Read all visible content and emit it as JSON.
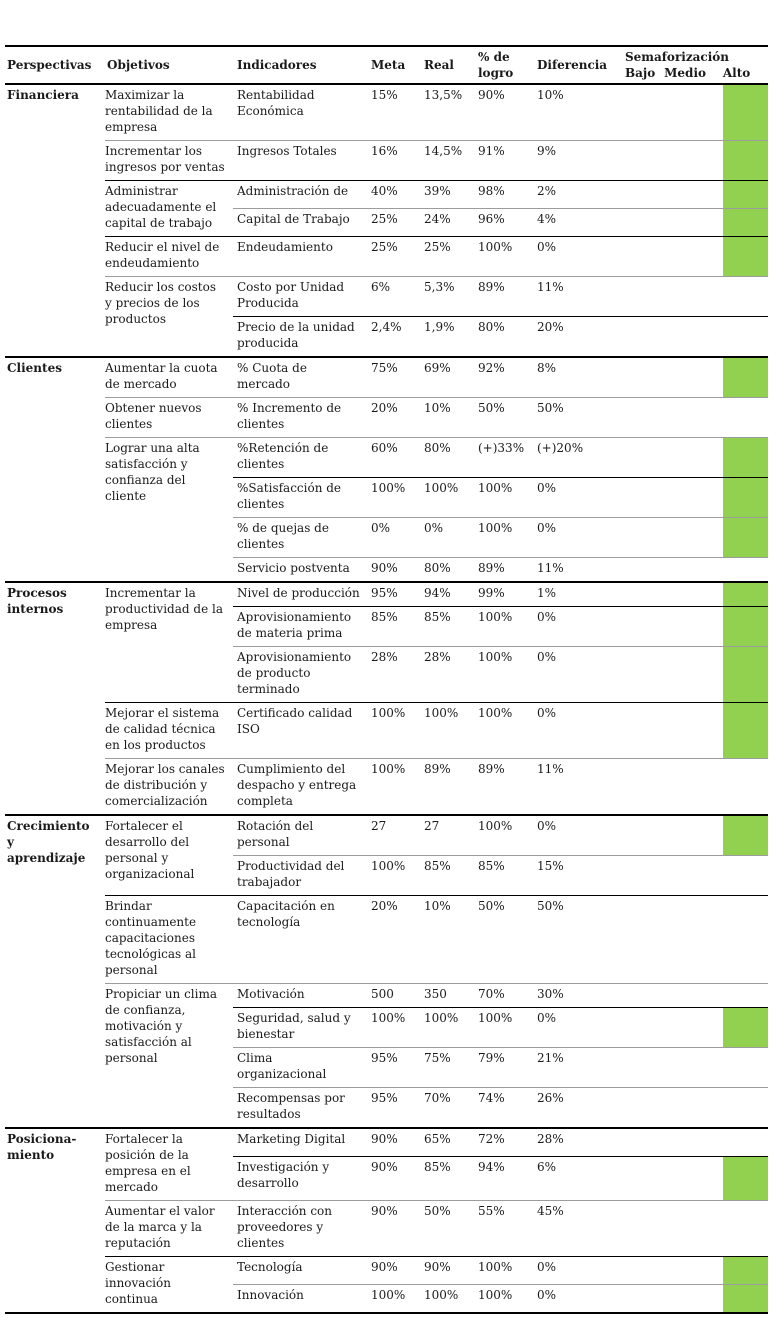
{
  "table": {
    "columns": {
      "perspectivas": "Perspectivas",
      "objetivos": "Objetivos",
      "indicadores": "Indicadores",
      "meta": "Meta",
      "real": "Real",
      "logro": "% de logro",
      "diferencia": "Diferencia",
      "semaforizacion": "Semaforización",
      "niveles": [
        "Bajo",
        "Medio",
        "Alto"
      ]
    },
    "colors": {
      "semaforo_alto_green": "#92D050",
      "divider_gray": "#9c9c9c",
      "divider_black": "#000000"
    },
    "perspectives": [
      {
        "name": "Financiera",
        "objectives": [
          {
            "label": "Maximizar la rentabilidad de la empresa",
            "divider": null,
            "indicators": [
              {
                "label": "Rentabilidad Económica",
                "meta": "15%",
                "real": "13,5%",
                "logro": "90%",
                "diferencia": "10%",
                "alto": true,
                "divider": null
              }
            ]
          },
          {
            "label": "Incrementar los ingresos por ventas",
            "divider": "gray",
            "indicators": [
              {
                "label": "Ingresos Totales",
                "meta": "16%",
                "real": "14,5%",
                "logro": "91%",
                "diferencia": "9%",
                "alto": true,
                "divider": null
              }
            ]
          },
          {
            "label": "Administrar adecuadamente el capital de trabajo",
            "divider": "black",
            "indicators": [
              {
                "label": "Administración de",
                "meta": "40%",
                "real": "39%",
                "logro": "98%",
                "diferencia": "2%",
                "alto": true,
                "divider": null
              },
              {
                "label": "Capital de Trabajo",
                "meta": "25%",
                "real": "24%",
                "logro": "96%",
                "diferencia": "4%",
                "alto": true,
                "divider": "gray"
              }
            ]
          },
          {
            "label": "Reducir el nivel de endeudamiento",
            "divider": "black",
            "indicators": [
              {
                "label": "Endeudamiento",
                "meta": "25%",
                "real": "25%",
                "logro": "100%",
                "diferencia": "0%",
                "alto": true,
                "divider": null
              }
            ]
          },
          {
            "label": "Reducir los costos y precios de los productos",
            "divider": "gray",
            "indicators": [
              {
                "label": "Costo por Unidad Producida",
                "meta": "6%",
                "real": "5,3%",
                "logro": "89%",
                "diferencia": "11%",
                "alto": false,
                "divider": null
              },
              {
                "label": "Precio de la unidad producida",
                "meta": "2,4%",
                "real": "1,9%",
                "logro": "80%",
                "diferencia": "20%",
                "alto": false,
                "divider": "black"
              }
            ]
          }
        ]
      },
      {
        "name": "Clientes",
        "objectives": [
          {
            "label": "Aumentar la cuota de mercado",
            "divider": null,
            "indicators": [
              {
                "label": "% Cuota de mercado",
                "meta": "75%",
                "real": "69%",
                "logro": "92%",
                "diferencia": "8%",
                "alto": true,
                "divider": null
              }
            ]
          },
          {
            "label": "Obtener nuevos clientes",
            "divider": "gray",
            "indicators": [
              {
                "label": "% Incremento de clientes",
                "meta": "20%",
                "real": "10%",
                "logro": "50%",
                "diferencia": "50%",
                "alto": false,
                "divider": null
              }
            ]
          },
          {
            "label": "Lograr una alta satisfacción y confianza del cliente",
            "divider": "gray",
            "indicators": [
              {
                "label": "%Retención de clientes",
                "meta": "60%",
                "real": "80%",
                "logro": "(+)33%",
                "diferencia": "(+)20%",
                "alto": true,
                "divider": null
              },
              {
                "label": "%Satisfacción de clientes",
                "meta": "100%",
                "real": "100%",
                "logro": "100%",
                "diferencia": "0%",
                "alto": true,
                "divider": "black"
              },
              {
                "label": "% de quejas de clientes",
                "meta": "0%",
                "real": "0%",
                "logro": "100%",
                "diferencia": "0%",
                "alto": true,
                "divider": "gray"
              },
              {
                "label": "Servicio postventa",
                "meta": "90%",
                "real": "80%",
                "logro": "89%",
                "diferencia": "11%",
                "alto": false,
                "divider": "gray"
              }
            ]
          }
        ]
      },
      {
        "name": "Procesos\ninternos",
        "objectives": [
          {
            "label": "Incrementar la productividad de la empresa",
            "divider": null,
            "indicators": [
              {
                "label": "Nivel de producción",
                "meta": "95%",
                "real": "94%",
                "logro": "99%",
                "diferencia": "1%",
                "alto": true,
                "divider": null
              },
              {
                "label": "Aprovisionamiento de materia prima",
                "meta": "85%",
                "real": "85%",
                "logro": "100%",
                "diferencia": "0%",
                "alto": true,
                "divider": "black"
              },
              {
                "label": "Aprovisionamiento de producto terminado",
                "meta": "28%",
                "real": "28%",
                "logro": "100%",
                "diferencia": "0%",
                "alto": true,
                "divider": "gray"
              }
            ]
          },
          {
            "label": "Mejorar el sistema de calidad técnica en los productos",
            "divider": "black",
            "indicators": [
              {
                "label": "Certificado calidad ISO",
                "meta": "100%",
                "real": "100%",
                "logro": "100%",
                "diferencia": "0%",
                "alto": true,
                "divider": null
              }
            ]
          },
          {
            "label": "Mejorar los canales de distribución y comercialización",
            "divider": "gray",
            "indicators": [
              {
                "label": "Cumplimiento del despacho y entrega completa",
                "meta": "100%",
                "real": "89%",
                "logro": "89%",
                "diferencia": "11%",
                "alto": false,
                "divider": null
              }
            ]
          }
        ]
      },
      {
        "name": "Crecimiento\ny\naprendizaje",
        "objectives": [
          {
            "label": "Fortalecer el desarrollo del personal y organizacional",
            "divider": null,
            "indicators": [
              {
                "label": "Rotación del personal",
                "meta": "27",
                "real": "27",
                "logro": "100%",
                "diferencia": "0%",
                "alto": true,
                "divider": null
              },
              {
                "label": "Productividad del trabajador",
                "meta": "100%",
                "real": "85%",
                "logro": "85%",
                "diferencia": "15%",
                "alto": false,
                "divider": "gray"
              }
            ]
          },
          {
            "label": "Brindar continuamente capacitaciones tecnológicas al personal",
            "divider": "black",
            "indicators": [
              {
                "label": "Capacitación en tecnología",
                "meta": "20%",
                "real": "10%",
                "logro": "50%",
                "diferencia": "50%",
                "alto": false,
                "divider": null
              }
            ]
          },
          {
            "label": "Propiciar un clima de confianza, motivación y satisfacción al personal",
            "divider": "gray",
            "indicators": [
              {
                "label": "Motivación",
                "meta": "500",
                "real": "350",
                "logro": "70%",
                "diferencia": "30%",
                "alto": false,
                "divider": null
              },
              {
                "label": "Seguridad, salud y bienestar",
                "meta": "100%",
                "real": "100%",
                "logro": "100%",
                "diferencia": "0%",
                "alto": true,
                "divider": "black"
              },
              {
                "label": "Clima organizacional",
                "meta": "95%",
                "real": "75%",
                "logro": "79%",
                "diferencia": "21%",
                "alto": false,
                "divider": "gray"
              },
              {
                "label": "Recompensas por resultados",
                "meta": "95%",
                "real": "70%",
                "logro": "74%",
                "diferencia": "26%",
                "alto": false,
                "divider": "gray"
              }
            ]
          }
        ]
      },
      {
        "name": "Posiciona-\nmiento",
        "objectives": [
          {
            "label": "Fortalecer la posición de la empresa en el mercado",
            "divider": null,
            "indicators": [
              {
                "label": "Marketing Digital",
                "meta": "90%",
                "real": "65%",
                "logro": "72%",
                "diferencia": "28%",
                "alto": false,
                "divider": null
              },
              {
                "label": "Investigación y desarrollo",
                "meta": "90%",
                "real": "85%",
                "logro": "94%",
                "diferencia": "6%",
                "alto": true,
                "divider": "black"
              }
            ]
          },
          {
            "label": "Aumentar el valor de la marca y la reputación",
            "divider": "gray",
            "indicators": [
              {
                "label": "Interacción con proveedores y clientes",
                "meta": "90%",
                "real": "50%",
                "logro": "55%",
                "diferencia": "45%",
                "alto": false,
                "divider": null
              }
            ]
          },
          {
            "label": "Gestionar innovación continua",
            "divider": "black",
            "indicators": [
              {
                "label": "Tecnología",
                "meta": "90%",
                "real": "90%",
                "logro": "100%",
                "diferencia": "0%",
                "alto": true,
                "divider": null
              },
              {
                "label": "Innovación",
                "meta": "100%",
                "real": "100%",
                "logro": "100%",
                "diferencia": "0%",
                "alto": true,
                "divider": "gray"
              }
            ]
          }
        ]
      }
    ]
  }
}
